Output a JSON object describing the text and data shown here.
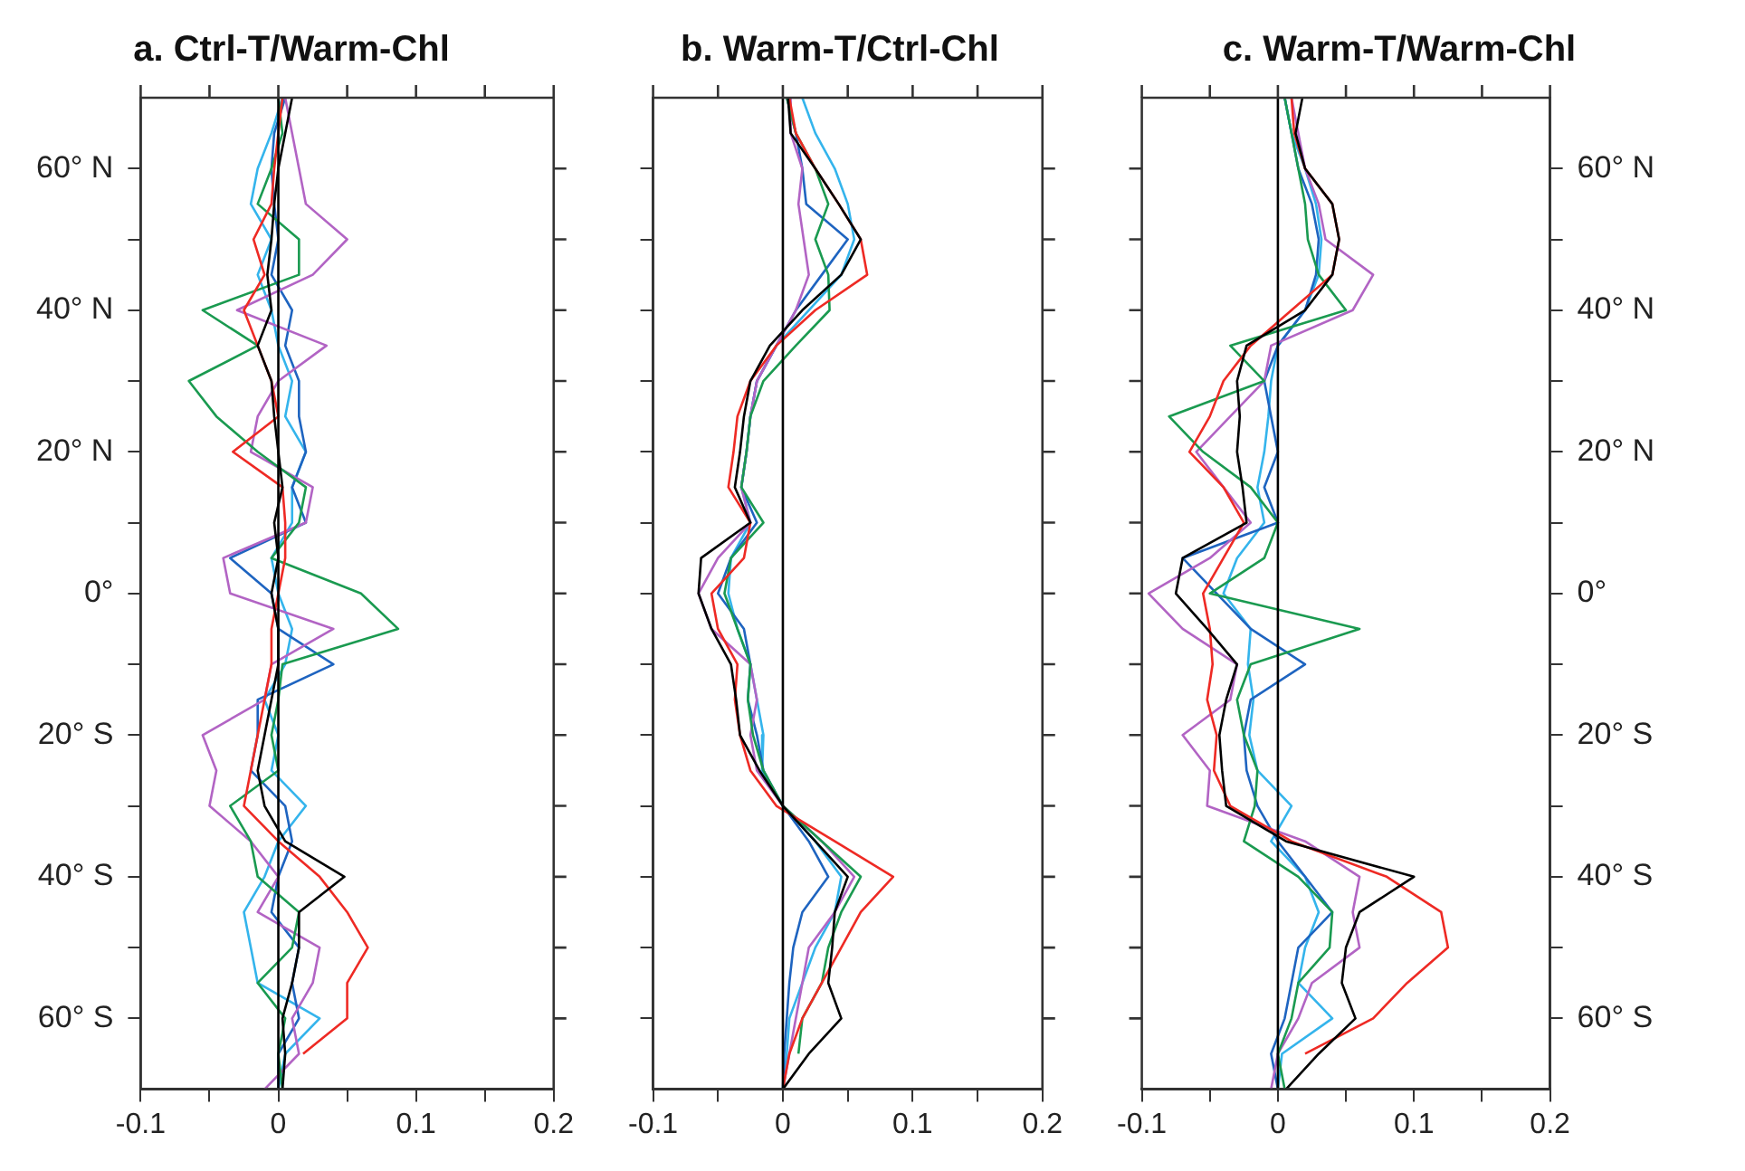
{
  "chart_data": [
    {
      "type": "line",
      "title": "a. Ctrl-T/Warm-Chl",
      "xlim": [
        -0.1,
        0.2
      ],
      "xticks": [
        -0.1,
        {
          "value": -0.05,
          "label": null
        },
        0,
        {
          "value": 0.05,
          "label": null
        },
        0.1,
        {
          "value": 0.15,
          "label": null
        },
        0.2
      ],
      "ylim": [
        -70,
        70
      ],
      "yticks": [
        {
          "value": -60,
          "label": "60° S"
        },
        {
          "value": -50,
          "label": null
        },
        {
          "value": -40,
          "label": "40° S"
        },
        {
          "value": -30,
          "label": null
        },
        {
          "value": -20,
          "label": "20° S"
        },
        {
          "value": -10,
          "label": null
        },
        {
          "value": 0,
          "label": "0°"
        },
        {
          "value": 10,
          "label": null
        },
        {
          "value": 20,
          "label": "20° N"
        },
        {
          "value": 30,
          "label": null
        },
        {
          "value": 40,
          "label": "40° N"
        },
        {
          "value": 50,
          "label": null
        },
        {
          "value": 60,
          "label": "60° N"
        }
      ],
      "ref_lines": [
        {
          "axis": "x",
          "value": 0,
          "color": "#000000"
        }
      ],
      "marker": "none",
      "line_style": "solid",
      "series": [
        {
          "color": "#000000",
          "x": [
            0.01,
            0.005,
            0,
            -0.003,
            -0.005,
            -0.008,
            -0.005,
            -0.015,
            -0.005,
            -0.003,
            0,
            0.003,
            -0.003,
            0,
            -0.005,
            0,
            0,
            -0.005,
            -0.01,
            -0.015,
            -0.01,
            0.005,
            0.048,
            0.015,
            0.015,
            0.01,
            0.003,
            0.005,
            0.003
          ],
          "values": [
            70,
            65,
            60,
            55,
            50,
            45,
            40,
            35,
            30,
            25,
            20,
            15,
            10,
            5,
            0,
            -5,
            -10,
            -15,
            -20,
            -25,
            -30,
            -35,
            -40,
            -45,
            -50,
            -55,
            -60,
            -65,
            -70
          ]
        },
        {
          "color": "#ee2a24",
          "x": [
            0.003,
            0,
            -0.003,
            -0.005,
            -0.018,
            -0.01,
            -0.025,
            -0.015,
            -0.005,
            0,
            -0.033,
            0.003,
            0.005,
            0.005,
            0,
            -0.005,
            -0.005,
            -0.01,
            -0.015,
            -0.02,
            -0.025,
            0,
            0.03,
            0.05,
            0.065,
            0.05,
            0.05,
            0.018
          ],
          "values": [
            70,
            65,
            60,
            55,
            50,
            45,
            40,
            35,
            30,
            25,
            20,
            15,
            10,
            5,
            0,
            -5,
            -10,
            -15,
            -20,
            -25,
            -30,
            -35,
            -40,
            -45,
            -50,
            -55,
            -60,
            -65
          ]
        },
        {
          "color": "#1a9a50",
          "x": [
            0,
            0.003,
            -0.005,
            -0.015,
            0.015,
            0.015,
            -0.055,
            -0.015,
            -0.065,
            -0.045,
            -0.015,
            0.02,
            0.015,
            -0.005,
            0.06,
            0.087,
            0.003,
            0,
            -0.005,
            0,
            -0.035,
            -0.02,
            -0.015,
            0.015,
            0.01,
            -0.015,
            0.005,
            0,
            0.003
          ],
          "values": [
            70,
            65,
            60,
            55,
            50,
            45,
            40,
            35,
            30,
            25,
            20,
            15,
            10,
            5,
            0,
            -5,
            -10,
            -15,
            -20,
            -25,
            -30,
            -35,
            -40,
            -45,
            -50,
            -55,
            -60,
            -65,
            -70
          ]
        },
        {
          "color": "#b264c4",
          "x": [
            0.005,
            0.01,
            0.015,
            0.02,
            0.05,
            0.025,
            -0.03,
            0.035,
            0,
            -0.015,
            -0.02,
            0.025,
            0.02,
            -0.04,
            -0.035,
            0.04,
            -0.005,
            -0.01,
            -0.055,
            -0.045,
            -0.05,
            -0.02,
            0,
            -0.015,
            0.03,
            0.025,
            0.01,
            0.015,
            -0.01
          ],
          "values": [
            70,
            65,
            60,
            55,
            50,
            45,
            40,
            35,
            30,
            25,
            20,
            15,
            10,
            5,
            0,
            -5,
            -10,
            -15,
            -20,
            -25,
            -30,
            -35,
            -40,
            -45,
            -50,
            -55,
            -60,
            -65,
            -70
          ]
        },
        {
          "color": "#1e64c0",
          "x": [
            0.005,
            -0.003,
            -0.005,
            -0.003,
            0,
            -0.005,
            0.01,
            0.005,
            0.015,
            0.015,
            0.02,
            0.01,
            0.02,
            -0.035,
            -0.005,
            0,
            0.04,
            -0.015,
            -0.015,
            -0.02,
            0.005,
            0.01,
            0,
            -0.005,
            0.015,
            0.01,
            0.015,
            0,
            0
          ],
          "values": [
            70,
            65,
            60,
            55,
            50,
            45,
            40,
            35,
            30,
            25,
            20,
            15,
            10,
            5,
            0,
            -5,
            -10,
            -15,
            -20,
            -25,
            -30,
            -35,
            -40,
            -45,
            -50,
            -55,
            -60,
            -65,
            -70
          ]
        },
        {
          "color": "#34b4ec",
          "x": [
            0.003,
            -0.005,
            -0.015,
            -0.02,
            -0.005,
            -0.015,
            -0.005,
            0,
            0.01,
            0.005,
            0.02,
            0.01,
            0.01,
            -0.005,
            0,
            0.01,
            0.005,
            -0.01,
            0,
            -0.005,
            0.02,
            0,
            -0.01,
            -0.025,
            -0.02,
            -0.015,
            0.03,
            0.005,
            0
          ],
          "values": [
            70,
            65,
            60,
            55,
            50,
            45,
            40,
            35,
            30,
            25,
            20,
            15,
            10,
            5,
            0,
            -5,
            -10,
            -15,
            -20,
            -25,
            -30,
            -35,
            -40,
            -45,
            -50,
            -55,
            -60,
            -65,
            -70
          ]
        }
      ]
    },
    {
      "type": "line",
      "title": "b. Warm-T/Ctrl-Chl",
      "tick_labels": "x",
      "xlim": [
        -0.1,
        0.2
      ],
      "xticks": [
        -0.1,
        {
          "value": -0.05,
          "label": null
        },
        0,
        {
          "value": 0.05,
          "label": null
        },
        0.1,
        {
          "value": 0.15,
          "label": null
        },
        0.2
      ],
      "ylim": [
        -70,
        70
      ],
      "yticks": [
        {
          "value": -60,
          "label": null
        },
        {
          "value": -50,
          "label": null
        },
        {
          "value": -40,
          "label": null
        },
        {
          "value": -30,
          "label": null
        },
        {
          "value": -20,
          "label": null
        },
        {
          "value": -10,
          "label": null
        },
        {
          "value": 0,
          "label": null
        },
        {
          "value": 10,
          "label": null
        },
        {
          "value": 20,
          "label": null
        },
        {
          "value": 30,
          "label": null
        },
        {
          "value": 40,
          "label": null
        },
        {
          "value": 50,
          "label": null
        },
        {
          "value": 60,
          "label": null
        }
      ],
      "ref_lines": [
        {
          "axis": "x",
          "value": 0,
          "color": "#000000"
        }
      ],
      "marker": "none",
      "line_style": "solid",
      "series": [
        {
          "color": "#000000",
          "x": [
            0.004,
            0.006,
            0.025,
            0.043,
            0.06,
            0.045,
            0.015,
            -0.01,
            -0.025,
            -0.03,
            -0.033,
            -0.037,
            -0.025,
            -0.063,
            -0.065,
            -0.055,
            -0.04,
            -0.036,
            -0.033,
            -0.018,
            0,
            0.025,
            0.05,
            0.04,
            0.038,
            0.035,
            0.045,
            0.02,
            0
          ],
          "values": [
            70,
            65,
            60,
            55,
            50,
            45,
            40,
            35,
            30,
            25,
            20,
            15,
            10,
            5,
            0,
            -5,
            -10,
            -15,
            -20,
            -25,
            -30,
            -35,
            -40,
            -45,
            -50,
            -55,
            -60,
            -65,
            -70
          ]
        },
        {
          "color": "#ee2a24",
          "x": [
            0.005,
            0.01,
            0.025,
            0.043,
            0.06,
            0.065,
            0.025,
            -0.005,
            -0.025,
            -0.035,
            -0.038,
            -0.042,
            -0.025,
            -0.03,
            -0.055,
            -0.05,
            -0.035,
            -0.037,
            -0.033,
            -0.025,
            -0.005,
            0.04,
            0.085,
            0.06,
            0.045,
            0.03,
            0.015,
            0.005,
            0
          ],
          "values": [
            70,
            65,
            60,
            55,
            50,
            45,
            40,
            35,
            30,
            25,
            20,
            15,
            10,
            5,
            0,
            -5,
            -10,
            -15,
            -20,
            -25,
            -30,
            -35,
            -40,
            -45,
            -50,
            -55,
            -60,
            -65,
            -70
          ]
        },
        {
          "color": "#1a9a50",
          "x": [
            0.003,
            0.01,
            0.025,
            0.035,
            0.025,
            0.035,
            0.036,
            0.01,
            -0.015,
            -0.025,
            -0.028,
            -0.032,
            -0.015,
            -0.04,
            -0.045,
            -0.035,
            -0.025,
            -0.027,
            -0.023,
            -0.015,
            0,
            0.03,
            0.06,
            0.045,
            0.035,
            0.03,
            0.015,
            0.012
          ],
          "values": [
            70,
            65,
            60,
            55,
            50,
            45,
            40,
            35,
            30,
            25,
            20,
            15,
            10,
            5,
            0,
            -5,
            -10,
            -15,
            -20,
            -25,
            -30,
            -35,
            -40,
            -45,
            -50,
            -55,
            -60,
            -65
          ]
        },
        {
          "color": "#b264c4",
          "x": [
            0.005,
            0.006,
            0.015,
            0.012,
            0.016,
            0.02,
            0.01,
            -0.005,
            -0.02,
            -0.025,
            -0.028,
            -0.032,
            -0.025,
            -0.05,
            -0.065,
            -0.055,
            -0.025,
            -0.02,
            -0.025,
            -0.02,
            0,
            0.03,
            0.055,
            0.04,
            0.02,
            0.015,
            0.01,
            0.005,
            0
          ],
          "values": [
            70,
            65,
            60,
            55,
            50,
            45,
            40,
            35,
            30,
            25,
            20,
            15,
            10,
            5,
            0,
            -5,
            -10,
            -15,
            -20,
            -25,
            -30,
            -35,
            -40,
            -45,
            -50,
            -55,
            -60,
            -65,
            -70
          ]
        },
        {
          "color": "#1e64c0",
          "x": [
            0.003,
            0.01,
            0.015,
            0.018,
            0.05,
            0.03,
            0.01,
            -0.005,
            -0.02,
            -0.025,
            -0.028,
            -0.032,
            -0.02,
            -0.04,
            -0.05,
            -0.03,
            -0.025,
            -0.027,
            -0.02,
            -0.015,
            0,
            0.02,
            0.035,
            0.015,
            0.008,
            0.005,
            0.003,
            0.001,
            0
          ],
          "values": [
            70,
            65,
            60,
            55,
            50,
            45,
            40,
            35,
            30,
            25,
            20,
            15,
            10,
            5,
            0,
            -5,
            -10,
            -15,
            -20,
            -25,
            -30,
            -35,
            -40,
            -45,
            -50,
            -55,
            -60,
            -65,
            -70
          ]
        },
        {
          "color": "#34b4ec",
          "x": [
            0.015,
            0.025,
            0.04,
            0.05,
            0.055,
            0.045,
            0.02,
            -0.005,
            -0.02,
            -0.025,
            -0.028,
            -0.032,
            -0.025,
            -0.04,
            -0.042,
            -0.035,
            -0.025,
            -0.02,
            -0.015,
            -0.016,
            0,
            0.025,
            0.045,
            0.04,
            0.025,
            0.015,
            0.005,
            0.003,
            0
          ],
          "values": [
            70,
            65,
            60,
            55,
            50,
            45,
            40,
            35,
            30,
            25,
            20,
            15,
            10,
            5,
            0,
            -5,
            -10,
            -15,
            -20,
            -25,
            -30,
            -35,
            -40,
            -45,
            -50,
            -55,
            -60,
            -65,
            -70
          ]
        }
      ]
    },
    {
      "type": "line",
      "title": "c. Warm-T/Warm-Chl",
      "xlim": [
        -0.1,
        0.2
      ],
      "xticks": [
        -0.1,
        {
          "value": -0.05,
          "label": null
        },
        0,
        {
          "value": 0.05,
          "label": null
        },
        0.1,
        {
          "value": 0.15,
          "label": null
        },
        0.2
      ],
      "ylim": [
        -70,
        70
      ],
      "yticks": [
        {
          "value": -60,
          "label": "60° S"
        },
        {
          "value": -50,
          "label": null
        },
        {
          "value": -40,
          "label": "40° S"
        },
        {
          "value": -30,
          "label": null
        },
        {
          "value": -20,
          "label": "20° S"
        },
        {
          "value": -10,
          "label": null
        },
        {
          "value": 0,
          "label": "0°"
        },
        {
          "value": 10,
          "label": null
        },
        {
          "value": 20,
          "label": "20° N"
        },
        {
          "value": 30,
          "label": null
        },
        {
          "value": 40,
          "label": "40° N"
        },
        {
          "value": 50,
          "label": null
        },
        {
          "value": 60,
          "label": "60° N"
        }
      ],
      "ref_lines": [
        {
          "axis": "x",
          "value": 0,
          "color": "#000000"
        }
      ],
      "marker": "none",
      "line_style": "solid",
      "series": [
        {
          "color": "#000000",
          "x": [
            0.018,
            0.013,
            0.02,
            0.04,
            0.045,
            0.04,
            0.02,
            -0.023,
            -0.03,
            -0.028,
            -0.03,
            -0.026,
            -0.023,
            -0.07,
            -0.075,
            -0.052,
            -0.03,
            -0.038,
            -0.043,
            -0.041,
            -0.038,
            0.006,
            0.1,
            0.06,
            0.05,
            0.047,
            0.057,
            0.03,
            0.006
          ],
          "values": [
            70,
            65,
            60,
            55,
            50,
            45,
            40,
            35,
            30,
            25,
            20,
            15,
            10,
            5,
            0,
            -5,
            -10,
            -15,
            -20,
            -25,
            -30,
            -35,
            -40,
            -45,
            -50,
            -55,
            -60,
            -65,
            -70
          ]
        },
        {
          "color": "#ee2a24",
          "x": [
            0.01,
            0.012,
            0.02,
            0.04,
            0.045,
            0.04,
            0.01,
            -0.02,
            -0.04,
            -0.05,
            -0.065,
            -0.04,
            -0.025,
            -0.04,
            -0.055,
            -0.05,
            -0.048,
            -0.052,
            -0.045,
            -0.047,
            -0.035,
            0.01,
            0.08,
            0.12,
            0.125,
            0.095,
            0.07,
            0.02
          ],
          "values": [
            70,
            65,
            60,
            55,
            50,
            45,
            40,
            35,
            30,
            25,
            20,
            15,
            10,
            5,
            0,
            -5,
            -10,
            -15,
            -20,
            -25,
            -30,
            -35,
            -40,
            -45,
            -50,
            -55,
            -60,
            -65
          ]
        },
        {
          "color": "#1a9a50",
          "x": [
            0.005,
            0.01,
            0.015,
            0.02,
            0.022,
            0.03,
            0.05,
            -0.035,
            -0.01,
            -0.08,
            -0.055,
            -0.02,
            0,
            -0.01,
            -0.05,
            0.06,
            -0.02,
            -0.03,
            -0.025,
            -0.015,
            -0.017,
            -0.025,
            0.015,
            0.04,
            0.038,
            0.015,
            0.01,
            0,
            0.005
          ],
          "values": [
            70,
            65,
            60,
            55,
            50,
            45,
            40,
            35,
            30,
            25,
            20,
            15,
            10,
            5,
            0,
            -5,
            -10,
            -15,
            -20,
            -25,
            -30,
            -35,
            -40,
            -45,
            -50,
            -55,
            -60,
            -65,
            -70
          ]
        },
        {
          "color": "#b264c4",
          "x": [
            0.01,
            0.015,
            0.02,
            0.03,
            0.035,
            0.07,
            0.055,
            -0.005,
            -0.01,
            -0.035,
            -0.06,
            -0.04,
            -0.02,
            -0.05,
            -0.095,
            -0.07,
            -0.03,
            -0.035,
            -0.07,
            -0.05,
            -0.052,
            0.02,
            0.06,
            0.055,
            0.06,
            0.025,
            0.015,
            0,
            -0.005
          ],
          "values": [
            70,
            65,
            60,
            55,
            50,
            45,
            40,
            35,
            30,
            25,
            20,
            15,
            10,
            5,
            0,
            -5,
            -10,
            -15,
            -20,
            -25,
            -30,
            -35,
            -40,
            -45,
            -50,
            -55,
            -60,
            -65,
            -70
          ]
        },
        {
          "color": "#1e64c0",
          "x": [
            0.005,
            0.01,
            0.015,
            0.025,
            0.03,
            0.028,
            0.02,
            0,
            -0.01,
            -0.005,
            0,
            -0.01,
            0,
            -0.07,
            -0.045,
            -0.02,
            0.02,
            -0.02,
            -0.025,
            -0.023,
            -0.015,
            0,
            0.02,
            0.04,
            0.015,
            0.01,
            0.005,
            -0.005,
            0
          ],
          "values": [
            70,
            65,
            60,
            55,
            50,
            45,
            40,
            35,
            30,
            25,
            20,
            15,
            10,
            5,
            0,
            -5,
            -10,
            -15,
            -20,
            -25,
            -30,
            -35,
            -40,
            -45,
            -50,
            -55,
            -60,
            -65,
            -70
          ]
        },
        {
          "color": "#34b4ec",
          "x": [
            0.005,
            0.01,
            0.02,
            0.028,
            0.032,
            0.03,
            0.02,
            0,
            -0.005,
            -0.007,
            -0.01,
            -0.015,
            -0.01,
            -0.03,
            -0.04,
            -0.02,
            -0.022,
            -0.018,
            -0.021,
            -0.015,
            0.01,
            -0.005,
            0.02,
            0.03,
            0.02,
            0.015,
            0.04,
            0.003,
            0
          ],
          "values": [
            70,
            65,
            60,
            55,
            50,
            45,
            40,
            35,
            30,
            25,
            20,
            15,
            10,
            5,
            0,
            -5,
            -10,
            -15,
            -20,
            -25,
            -30,
            -35,
            -40,
            -45,
            -50,
            -55,
            -60,
            -65,
            -70
          ]
        }
      ]
    }
  ]
}
